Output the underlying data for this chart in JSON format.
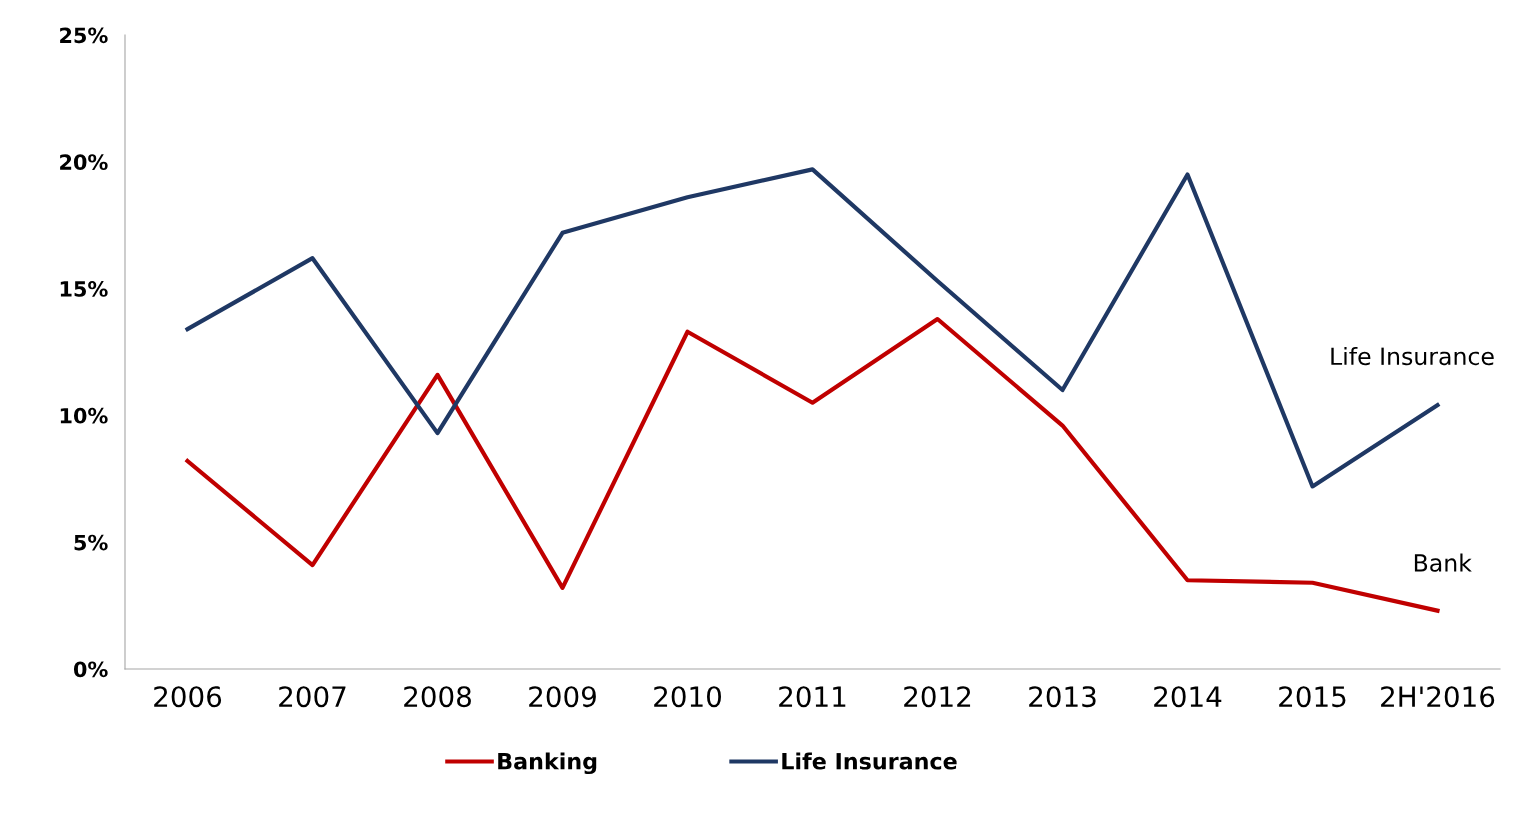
{
  "chart_data": {
    "type": "line",
    "categories": [
      "2006",
      "2007",
      "2008",
      "2009",
      "2010",
      "2011",
      "2012",
      "2013",
      "2014",
      "2015",
      "2H'2016"
    ],
    "series": [
      {
        "name": "Banking",
        "color": "#c00000",
        "values": [
          8.2,
          4.1,
          11.6,
          3.2,
          13.3,
          10.5,
          13.8,
          9.6,
          3.5,
          3.4,
          2.3
        ]
      },
      {
        "name": "Life Insurance",
        "color": "#1f3864",
        "values": [
          13.4,
          16.2,
          9.3,
          17.2,
          18.6,
          19.7,
          15.3,
          11.0,
          19.5,
          7.2,
          10.4
        ]
      }
    ],
    "ylim": [
      0,
      25
    ],
    "yticks": [
      {
        "value": 0,
        "label": "0%"
      },
      {
        "value": 5,
        "label": "5%"
      },
      {
        "value": 10,
        "label": "10%"
      },
      {
        "value": 15,
        "label": "15%"
      },
      {
        "value": 20,
        "label": "20%"
      },
      {
        "value": 25,
        "label": "25%"
      }
    ],
    "annotations": [
      "Life Insurance",
      "Bank"
    ],
    "legend": "bottom",
    "grid": false,
    "marker": "none",
    "line_style": "solid"
  }
}
